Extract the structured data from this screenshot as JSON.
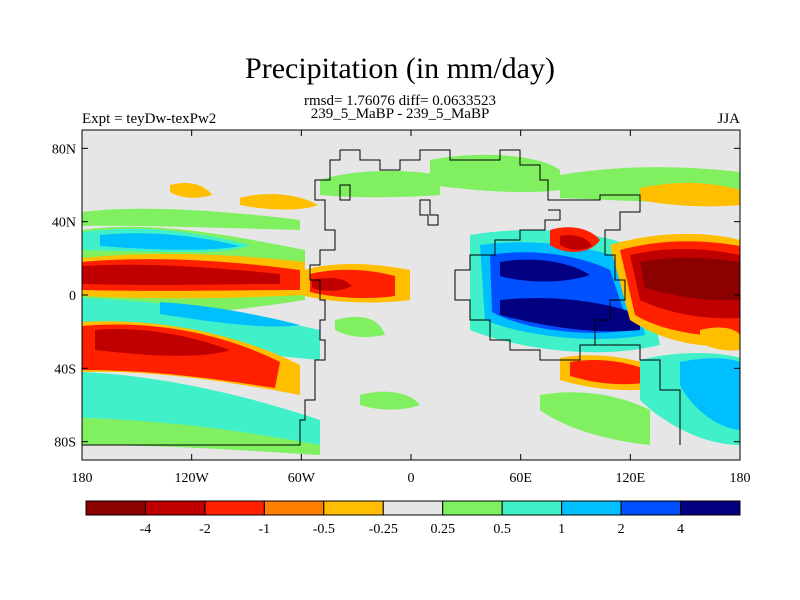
{
  "figure": {
    "title": "Precipitation (in mm/day)",
    "stats": "rmsd= 1.76076 diff= 0.0633523",
    "subtitle": "239_5_MaBP - 239_5_MaBP",
    "left_label": "Expt = teyDw-texPw2",
    "right_label": "JJA"
  },
  "chart_data": {
    "type": "heatmap",
    "map_type": "filled contour of precipitation difference on a global lat-lon grid with paleogeography coastline outlines",
    "lon_range": [
      -180,
      180
    ],
    "lat_range": [
      -90,
      90
    ],
    "x_ticks": [
      {
        "value": -180,
        "label": "180"
      },
      {
        "value": -120,
        "label": "120W"
      },
      {
        "value": -60,
        "label": "60W"
      },
      {
        "value": 0,
        "label": "0"
      },
      {
        "value": 60,
        "label": "60E"
      },
      {
        "value": 120,
        "label": "120E"
      },
      {
        "value": 180,
        "label": "180"
      }
    ],
    "y_ticks": [
      {
        "value": 80,
        "label": "80N"
      },
      {
        "value": 40,
        "label": "40N"
      },
      {
        "value": 0,
        "label": "0"
      },
      {
        "value": -40,
        "label": "40S"
      },
      {
        "value": -80,
        "label": "80S"
      }
    ],
    "colorbar": {
      "colors": [
        "#8b0000",
        "#c00000",
        "#ff2000",
        "#ff7f00",
        "#ffbf00",
        "#e6e6e6",
        "#80f060",
        "#40f0c8",
        "#00bfff",
        "#0050ff",
        "#000080"
      ],
      "labels": [
        "-4",
        "-2",
        "-1",
        "-0.5",
        "-0.25",
        "0.25",
        "0.5",
        "1",
        "2",
        "4"
      ]
    },
    "background_color": "#e6e6e6",
    "features": [
      {
        "lon": -160,
        "lat": 10,
        "level": -4,
        "desc": "strong negative anomaly, tropical North Pacific"
      },
      {
        "lon": -150,
        "lat": -28,
        "level": -2,
        "desc": "negative band, South Pacific"
      },
      {
        "lon": -35,
        "lat": 5,
        "level": -2,
        "desc": "negative anomaly, tropical Atlantic"
      },
      {
        "lon": 155,
        "lat": 8,
        "level": -4,
        "desc": "strong negative anomaly, western Pacific"
      },
      {
        "lon": 110,
        "lat": -8,
        "level": 4,
        "desc": "strong positive anomaly, Indian Ocean / eastern continent"
      },
      {
        "lon": 60,
        "lat": 12,
        "level": 4,
        "desc": "strong positive anomaly, northern Indian Ocean"
      },
      {
        "lon": 165,
        "lat": -45,
        "level": 2,
        "desc": "positive anomaly, southern high latitudes"
      }
    ]
  }
}
